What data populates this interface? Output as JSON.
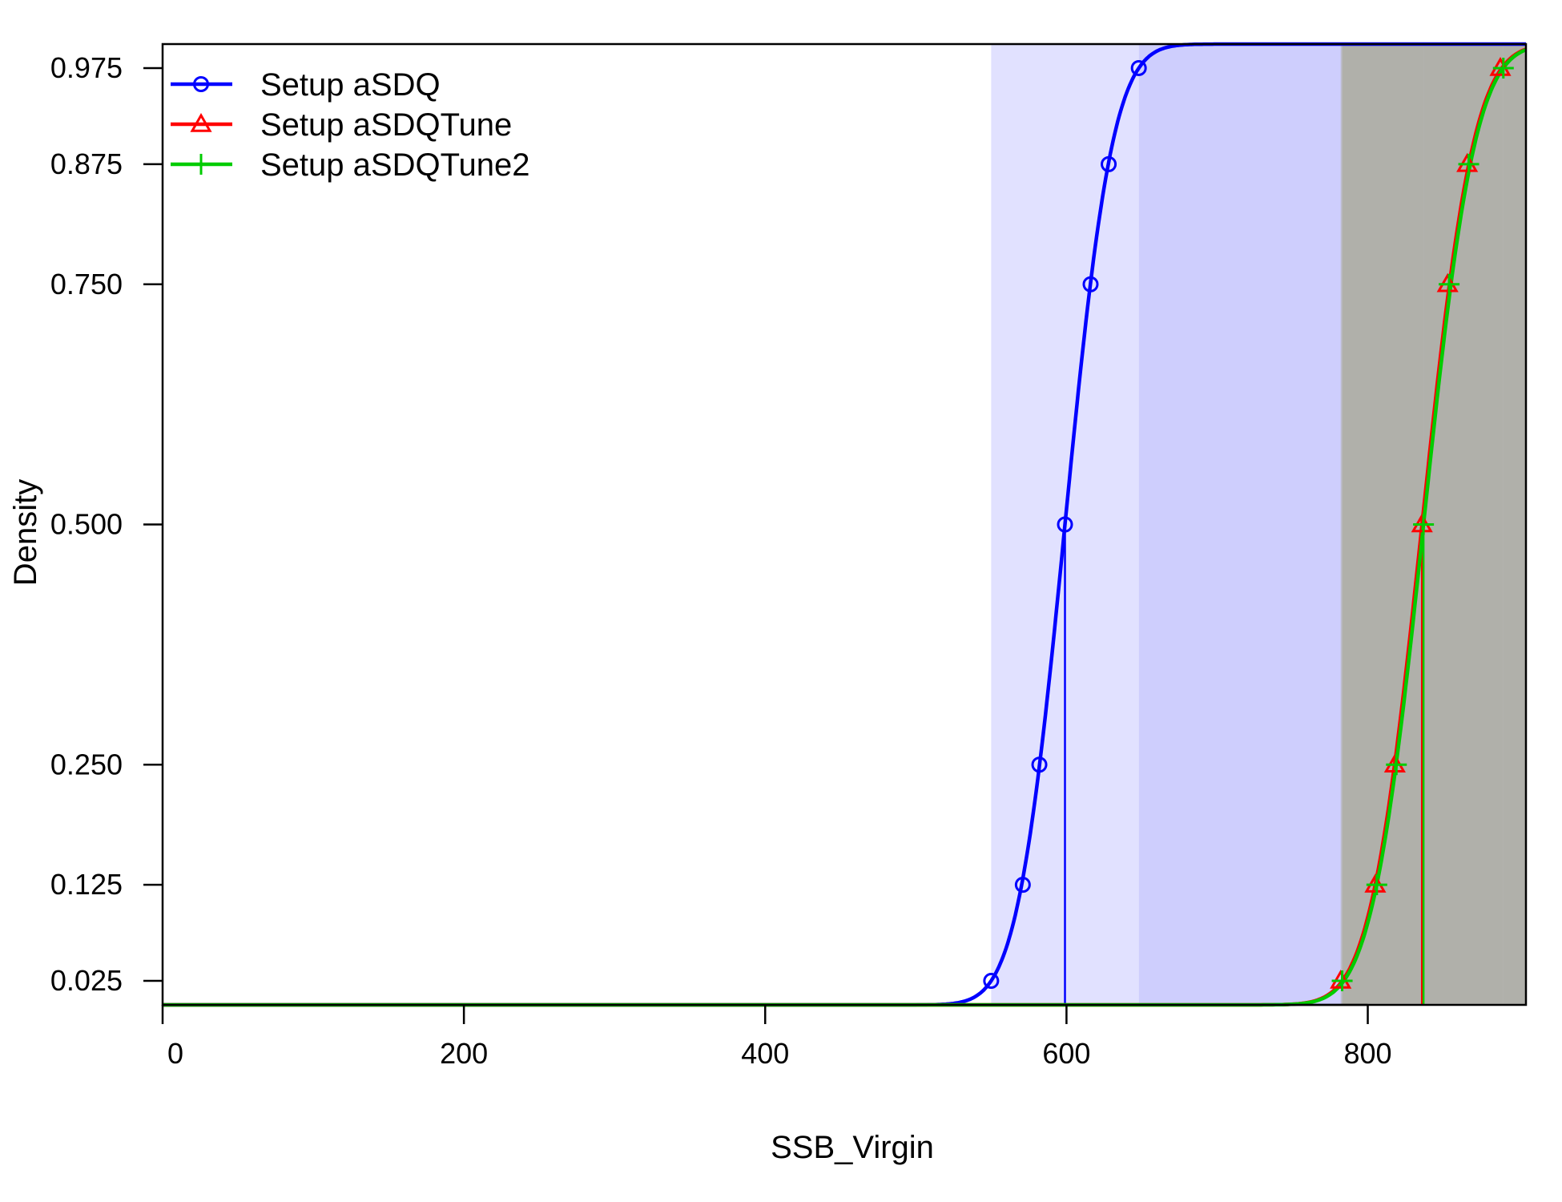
{
  "chart_data": {
    "type": "line",
    "xlabel": "SSB_Virgin",
    "ylabel": "Density",
    "xlim": [
      0,
      905
    ],
    "ylim": [
      0,
      1
    ],
    "x_ticks": [
      0,
      200,
      400,
      600,
      800
    ],
    "x_tick_labels": [
      "0",
      "200",
      "400",
      "600",
      "800"
    ],
    "y_ticks": [
      0.025,
      0.125,
      0.25,
      0.5,
      0.75,
      0.875,
      0.975
    ],
    "y_tick_labels": [
      "0.025",
      "0.125",
      "0.250",
      "0.500",
      "0.750",
      "0.875",
      "0.975"
    ],
    "legend_position": "top-left",
    "grid": false,
    "series": [
      {
        "name": "Setup aSDQ",
        "color": "#0000ff",
        "marker": "circle",
        "cdf_mean": 599,
        "cdf_sd": 25,
        "median": 599,
        "ci95": [
          550,
          648
        ],
        "marker_points": [
          {
            "x": 550,
            "y": 0.025
          },
          {
            "x": 571,
            "y": 0.125
          },
          {
            "x": 582,
            "y": 0.25
          },
          {
            "x": 599,
            "y": 0.5
          },
          {
            "x": 616,
            "y": 0.75
          },
          {
            "x": 628,
            "y": 0.875
          },
          {
            "x": 648,
            "y": 0.975
          }
        ],
        "band_colors": {
          "outer": "#e1e1ff",
          "inner": "#cecefd"
        }
      },
      {
        "name": "Setup aSDQTune",
        "color": "#ff0000",
        "marker": "triangle",
        "cdf_mean": 836,
        "cdf_sd": 27,
        "median": 836,
        "ci95": [
          782,
          888
        ],
        "marker_points": [
          {
            "x": 782,
            "y": 0.025
          },
          {
            "x": 805,
            "y": 0.125
          },
          {
            "x": 818,
            "y": 0.25
          },
          {
            "x": 836,
            "y": 0.5
          },
          {
            "x": 853,
            "y": 0.75
          },
          {
            "x": 866,
            "y": 0.875
          },
          {
            "x": 888,
            "y": 0.975
          }
        ],
        "band_colors": {
          "outer": "#bdbdcf",
          "inner": "#bdbdcf"
        }
      },
      {
        "name": "Setup aSDQTune2",
        "color": "#00cc00",
        "marker": "plus",
        "cdf_mean": 837,
        "cdf_sd": 27,
        "median": 837,
        "ci95": [
          783,
          890
        ],
        "marker_points": [
          {
            "x": 783,
            "y": 0.025
          },
          {
            "x": 806,
            "y": 0.125
          },
          {
            "x": 819,
            "y": 0.25
          },
          {
            "x": 837,
            "y": 0.5
          },
          {
            "x": 854,
            "y": 0.75
          },
          {
            "x": 867,
            "y": 0.875
          },
          {
            "x": 890,
            "y": 0.975
          }
        ],
        "band_colors": {
          "outer": "#b0b0aa",
          "inner": "#b0b0aa"
        }
      }
    ]
  }
}
